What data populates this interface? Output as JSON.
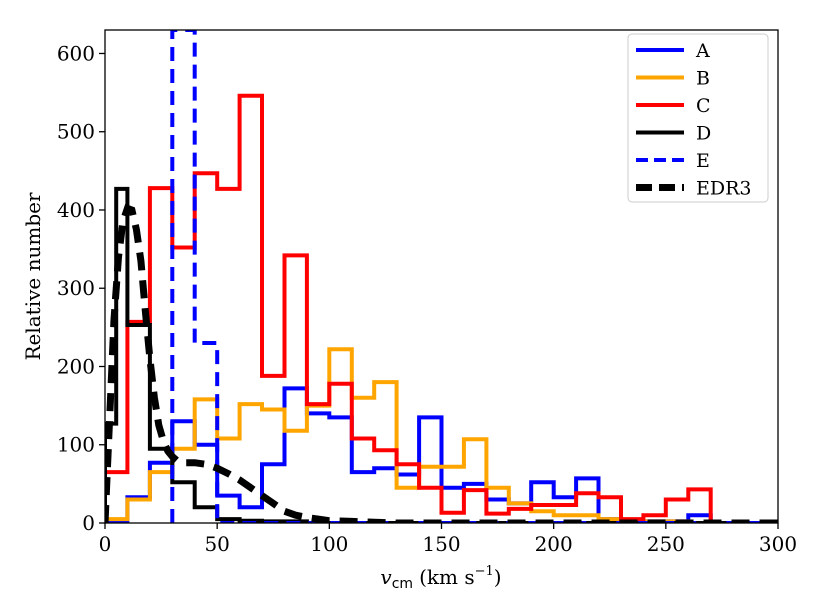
{
  "chart_data": {
    "type": "line",
    "subtype": "step-histogram",
    "title": "",
    "xlabel_main": "v",
    "xlabel_sub": "cm",
    "xlabel_units": "(km s",
    "xlabel_exp": "−1",
    "xlabel_close": ")",
    "ylabel": "Relative number",
    "xlim": [
      0,
      300
    ],
    "ylim": [
      0,
      630
    ],
    "xticks": [
      0,
      50,
      100,
      150,
      200,
      250,
      300
    ],
    "yticks": [
      0,
      100,
      200,
      300,
      400,
      500,
      600
    ],
    "legend_position": "top-right",
    "series": [
      {
        "name": "A",
        "color": "#0000ff",
        "style": "solid",
        "kind": "step",
        "edges": [
          0,
          10,
          20,
          30,
          40,
          50,
          60,
          70,
          80,
          90,
          100,
          110,
          120,
          130,
          140,
          150,
          160,
          170,
          180,
          190,
          200,
          210,
          220,
          230,
          240,
          250,
          260,
          270,
          280,
          290,
          300
        ],
        "values": [
          0,
          33,
          77,
          130,
          100,
          35,
          20,
          75,
          172,
          140,
          135,
          65,
          70,
          62,
          135,
          45,
          50,
          30,
          25,
          52,
          33,
          57,
          5,
          3,
          2,
          2,
          10,
          0,
          0,
          0
        ]
      },
      {
        "name": "B",
        "color": "#ffa500",
        "style": "solid",
        "kind": "step",
        "edges": [
          0,
          10,
          20,
          30,
          40,
          50,
          60,
          70,
          80,
          90,
          100,
          110,
          120,
          130,
          140,
          150,
          160,
          170,
          180,
          190,
          200,
          210,
          220,
          230,
          240,
          250,
          260,
          270,
          280,
          290,
          300
        ],
        "values": [
          5,
          30,
          65,
          95,
          158,
          108,
          152,
          145,
          118,
          150,
          222,
          160,
          180,
          45,
          72,
          72,
          107,
          45,
          25,
          15,
          10,
          10,
          5,
          3,
          2,
          2,
          0,
          0,
          0,
          0
        ]
      },
      {
        "name": "C",
        "color": "#ff0000",
        "style": "solid",
        "kind": "step",
        "edges": [
          0,
          10,
          20,
          30,
          40,
          50,
          60,
          70,
          80,
          90,
          100,
          110,
          120,
          130,
          140,
          150,
          160,
          170,
          180,
          190,
          200,
          210,
          220,
          230,
          240,
          250,
          260,
          270,
          280,
          290,
          300
        ],
        "values": [
          65,
          257,
          428,
          352,
          447,
          427,
          546,
          188,
          342,
          152,
          178,
          108,
          93,
          75,
          45,
          13,
          42,
          12,
          18,
          23,
          23,
          38,
          33,
          5,
          10,
          30,
          43,
          0,
          0,
          0
        ]
      },
      {
        "name": "D",
        "color": "#000000",
        "style": "solid",
        "kind": "step",
        "edges": [
          0,
          5,
          10,
          20,
          30,
          40,
          50,
          60,
          70,
          80,
          90,
          100,
          110,
          300
        ],
        "values": [
          127,
          427,
          253,
          95,
          52,
          20,
          5,
          3,
          2,
          2,
          0,
          0,
          0
        ]
      },
      {
        "name": "E",
        "color": "#0000ff",
        "style": "dashed",
        "kind": "step",
        "edges": [
          30,
          40,
          50,
          60,
          300
        ],
        "values": [
          630,
          230,
          0,
          0
        ]
      },
      {
        "name": "EDR3",
        "color": "#000000",
        "style": "dashed-thick",
        "kind": "curve",
        "x": [
          0,
          2,
          4,
          6,
          8,
          10,
          12,
          14,
          16,
          18,
          20,
          22,
          24,
          26,
          28,
          30,
          32,
          34,
          36,
          38,
          40,
          45,
          50,
          55,
          60,
          65,
          70,
          75,
          80,
          85,
          90,
          95,
          100,
          110,
          120,
          130,
          150,
          200,
          300
        ],
        "y": [
          0,
          130,
          260,
          340,
          385,
          402,
          400,
          375,
          335,
          270,
          210,
          160,
          125,
          105,
          92,
          85,
          80,
          78,
          77,
          77,
          77,
          75,
          70,
          63,
          55,
          45,
          35,
          25,
          15,
          10,
          7,
          5,
          3,
          2,
          1,
          0,
          0,
          0,
          0
        ]
      }
    ]
  }
}
